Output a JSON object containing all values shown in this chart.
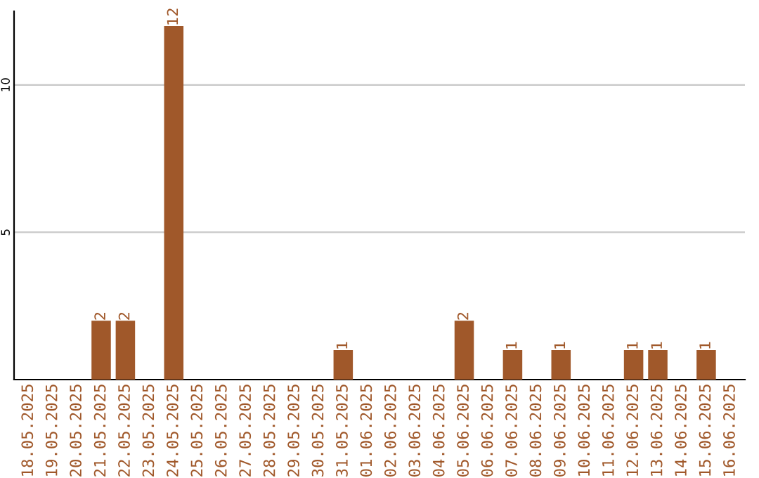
{
  "chart_data": {
    "type": "bar",
    "categories": [
      "18.05.2025",
      "19.05.2025",
      "20.05.2025",
      "21.05.2025",
      "22.05.2025",
      "23.05.2025",
      "24.05.2025",
      "25.05.2025",
      "26.05.2025",
      "27.05.2025",
      "28.05.2025",
      "29.05.2025",
      "30.05.2025",
      "31.05.2025",
      "01.06.2025",
      "02.06.2025",
      "03.06.2025",
      "04.06.2025",
      "05.06.2025",
      "06.06.2025",
      "07.06.2025",
      "08.06.2025",
      "09.06.2025",
      "10.06.2025",
      "11.06.2025",
      "12.06.2025",
      "13.06.2025",
      "14.06.2025",
      "15.06.2025",
      "16.06.2025"
    ],
    "values": [
      0,
      0,
      0,
      2,
      2,
      0,
      12,
      0,
      0,
      0,
      0,
      0,
      0,
      1,
      0,
      0,
      0,
      0,
      2,
      0,
      1,
      0,
      1,
      0,
      0,
      1,
      1,
      0,
      1,
      0
    ],
    "value_labels": [
      null,
      null,
      null,
      "2",
      "2",
      null,
      "12",
      null,
      null,
      null,
      null,
      null,
      null,
      "1",
      null,
      null,
      null,
      null,
      "2",
      null,
      "1",
      null,
      "1",
      null,
      null,
      "1",
      "1",
      null,
      "1",
      null
    ],
    "color": "#a0582a",
    "ylim": [
      0,
      12.5
    ],
    "yticks": [
      5,
      10
    ],
    "grid": "y"
  }
}
